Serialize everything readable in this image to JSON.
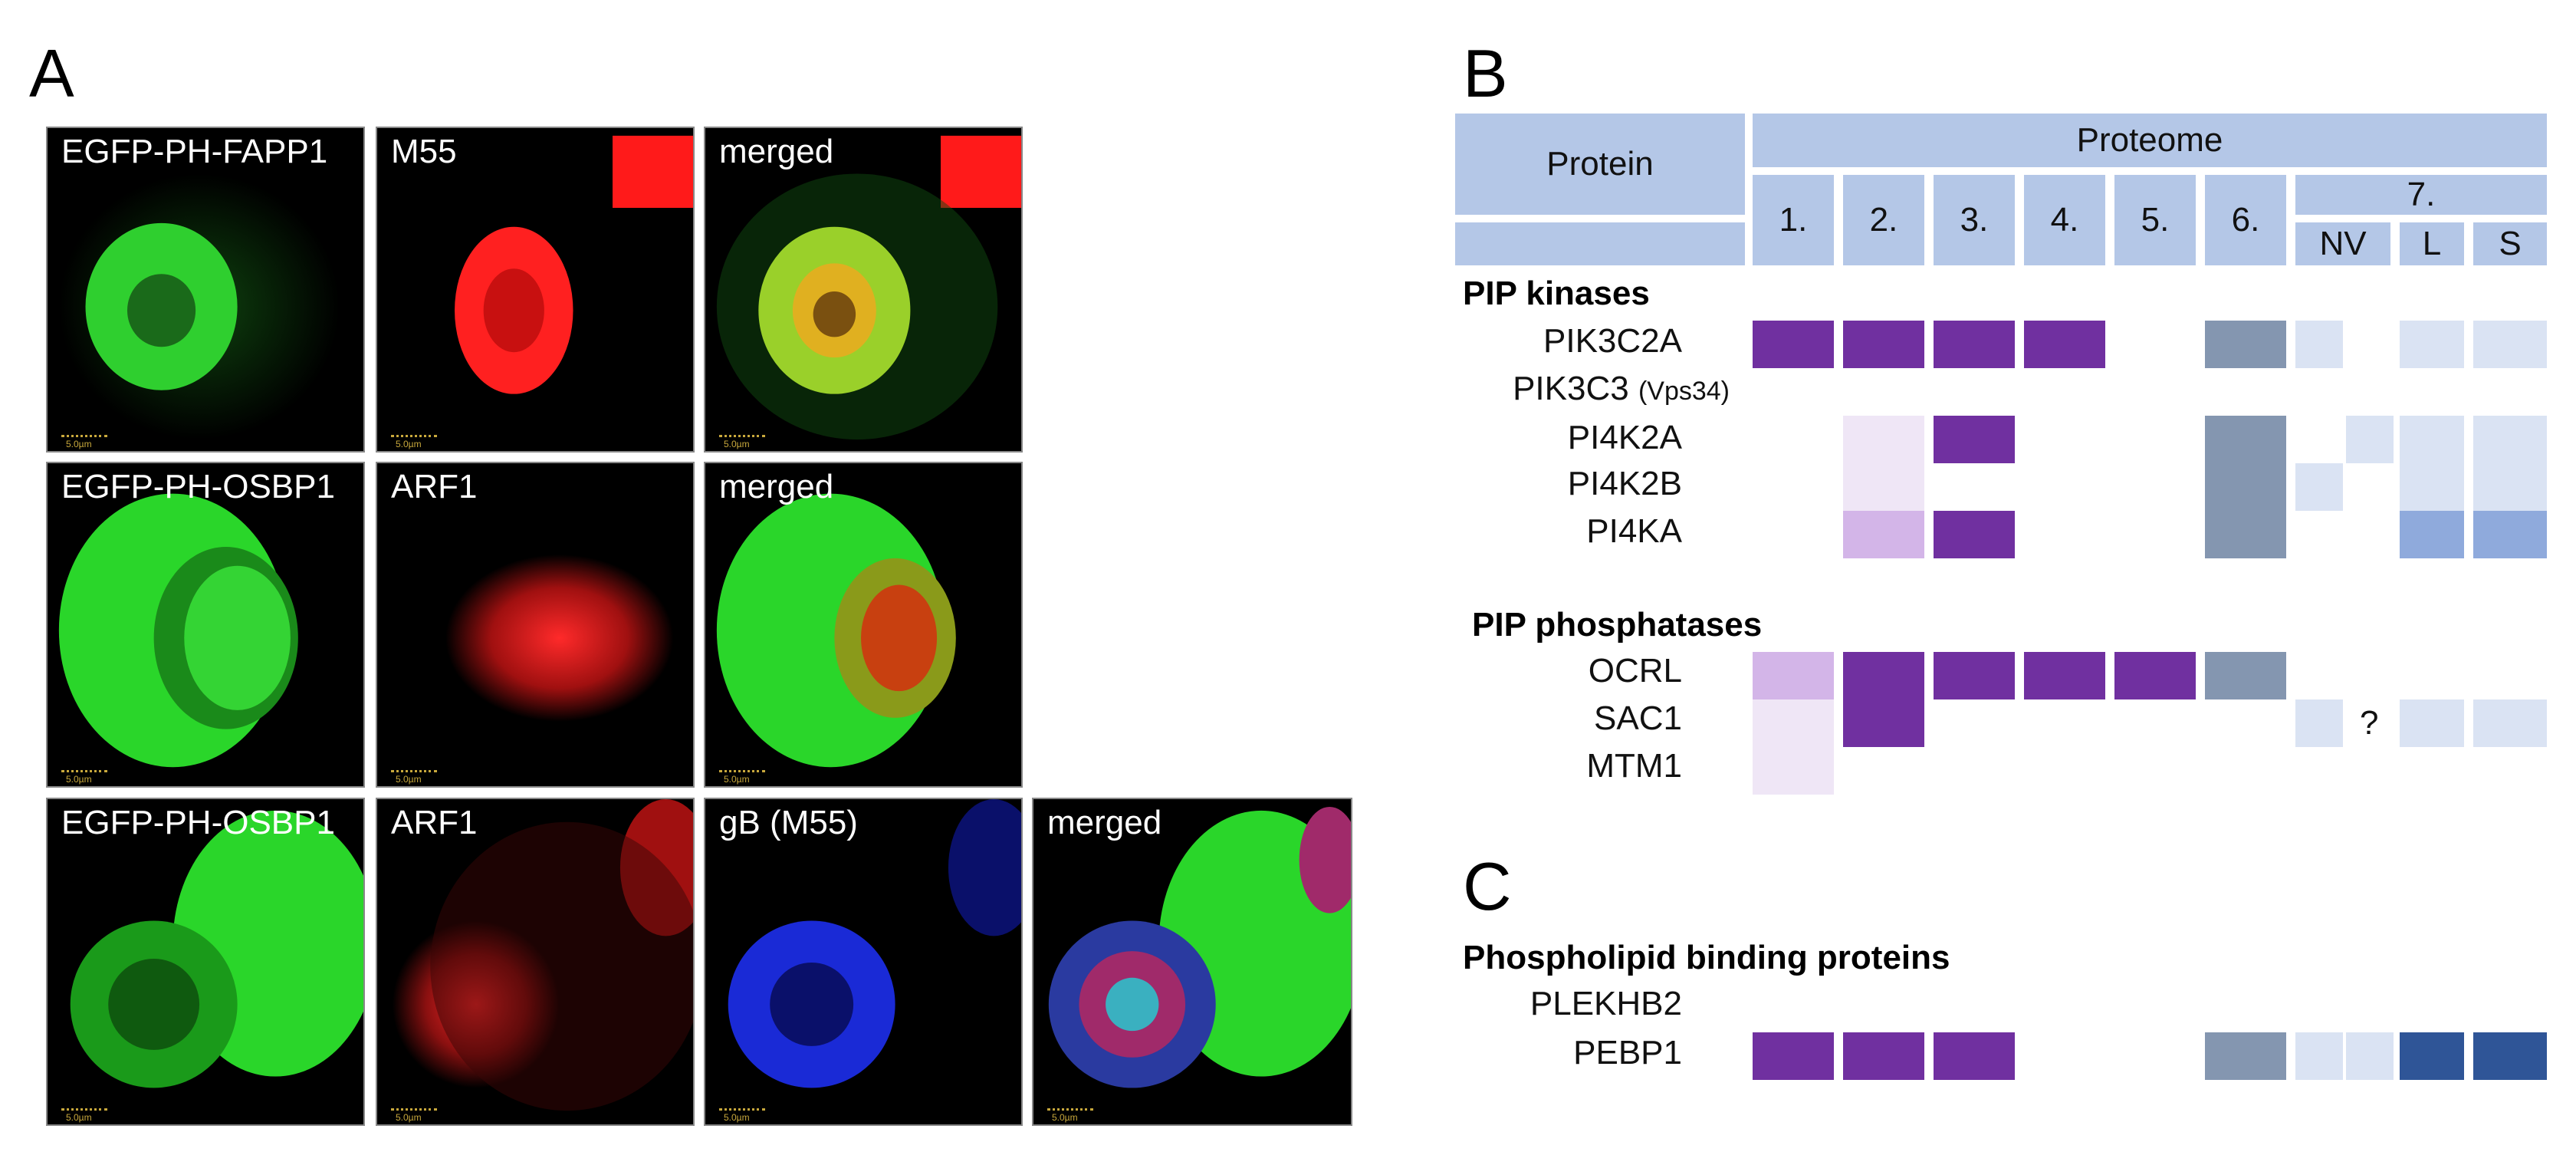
{
  "panel_a": {
    "letter": "A",
    "scale_text": "5.0µm",
    "rows": [
      {
        "images": [
          {
            "label": "EGFP-PH-FAPP1"
          },
          {
            "label": "M55"
          },
          {
            "label": "merged"
          }
        ]
      },
      {
        "images": [
          {
            "label": "EGFP-PH-OSBP1"
          },
          {
            "label": "ARF1"
          },
          {
            "label": "merged"
          }
        ]
      },
      {
        "images": [
          {
            "label": "EGFP-PH-OSBP1"
          },
          {
            "label": "ARF1"
          },
          {
            "label": "gB (M55)"
          },
          {
            "label": "merged"
          }
        ]
      }
    ]
  },
  "panel_b": {
    "letter": "B",
    "header": {
      "protein": "Protein",
      "proteome": "Proteome",
      "columns": [
        "1.",
        "2.",
        "3.",
        "4.",
        "5.",
        "6."
      ],
      "group7": "7.",
      "sub7": [
        "NV",
        "L",
        "S"
      ]
    },
    "colors": {
      "header": "#b4c7e7",
      "dark_purple": "#7030a0",
      "light_purple": "#d3b5e8",
      "pale_purple": "#efe6f6",
      "slate": "#8496b0",
      "pale_blue": "#dae3f3",
      "mid_blue": "#8faadc",
      "dark_blue": "#2f5597"
    },
    "sections": [
      {
        "title": "PIP kinases",
        "rows": [
          {
            "name": "PIK3C2A",
            "suffix": "",
            "cells": [
              "dark_purple",
              "dark_purple",
              "dark_purple",
              "dark_purple",
              "",
              "slate",
              "pale_blue",
              "",
              "pale_blue",
              "pale_blue"
            ]
          },
          {
            "name": "PIK3C3",
            "suffix": "(Vps34)",
            "cells": [
              "",
              "",
              "",
              "",
              "",
              "",
              "",
              "",
              "",
              ""
            ]
          },
          {
            "name": "PI4K2A",
            "suffix": "",
            "cells": [
              "",
              "pale_purple",
              "dark_purple",
              "",
              "",
              "slate",
              "",
              "pale_blue",
              "pale_blue",
              "pale_blue"
            ]
          },
          {
            "name": "PI4K2B",
            "suffix": "",
            "cells": [
              "",
              "pale_purple",
              "",
              "",
              "",
              "slate",
              "pale_blue",
              "",
              "pale_blue",
              "pale_blue"
            ]
          },
          {
            "name": "PI4KA",
            "suffix": "",
            "cells": [
              "",
              "light_purple",
              "dark_purple",
              "",
              "",
              "slate",
              "",
              "",
              "mid_blue",
              "mid_blue"
            ]
          }
        ]
      },
      {
        "title": "PIP phosphatases",
        "rows": [
          {
            "name": "OCRL",
            "suffix": "",
            "cells": [
              "light_purple",
              "dark_purple",
              "dark_purple",
              "dark_purple",
              "dark_purple",
              "slate",
              "",
              "",
              "",
              ""
            ]
          },
          {
            "name": "SAC1",
            "suffix": "",
            "cells": [
              "pale_purple",
              "dark_purple",
              "",
              "",
              "",
              "",
              "pale_blue",
              "?",
              "pale_blue",
              "pale_blue"
            ]
          },
          {
            "name": "MTM1",
            "suffix": "",
            "cells": [
              "pale_purple",
              "",
              "",
              "",
              "",
              "",
              "",
              "",
              "",
              ""
            ]
          }
        ]
      }
    ]
  },
  "panel_c": {
    "letter": "C",
    "title": "Phospholipid binding proteins",
    "rows": [
      {
        "name": "PLEKHB2",
        "cells": [
          "",
          "",
          "",
          "",
          "",
          "",
          "",
          "",
          "",
          ""
        ]
      },
      {
        "name": "PEBP1",
        "cells": [
          "dark_purple",
          "dark_purple",
          "dark_purple",
          "",
          "",
          "slate",
          "pale_blue",
          "pale_blue",
          "dark_blue",
          "dark_blue"
        ]
      }
    ]
  }
}
